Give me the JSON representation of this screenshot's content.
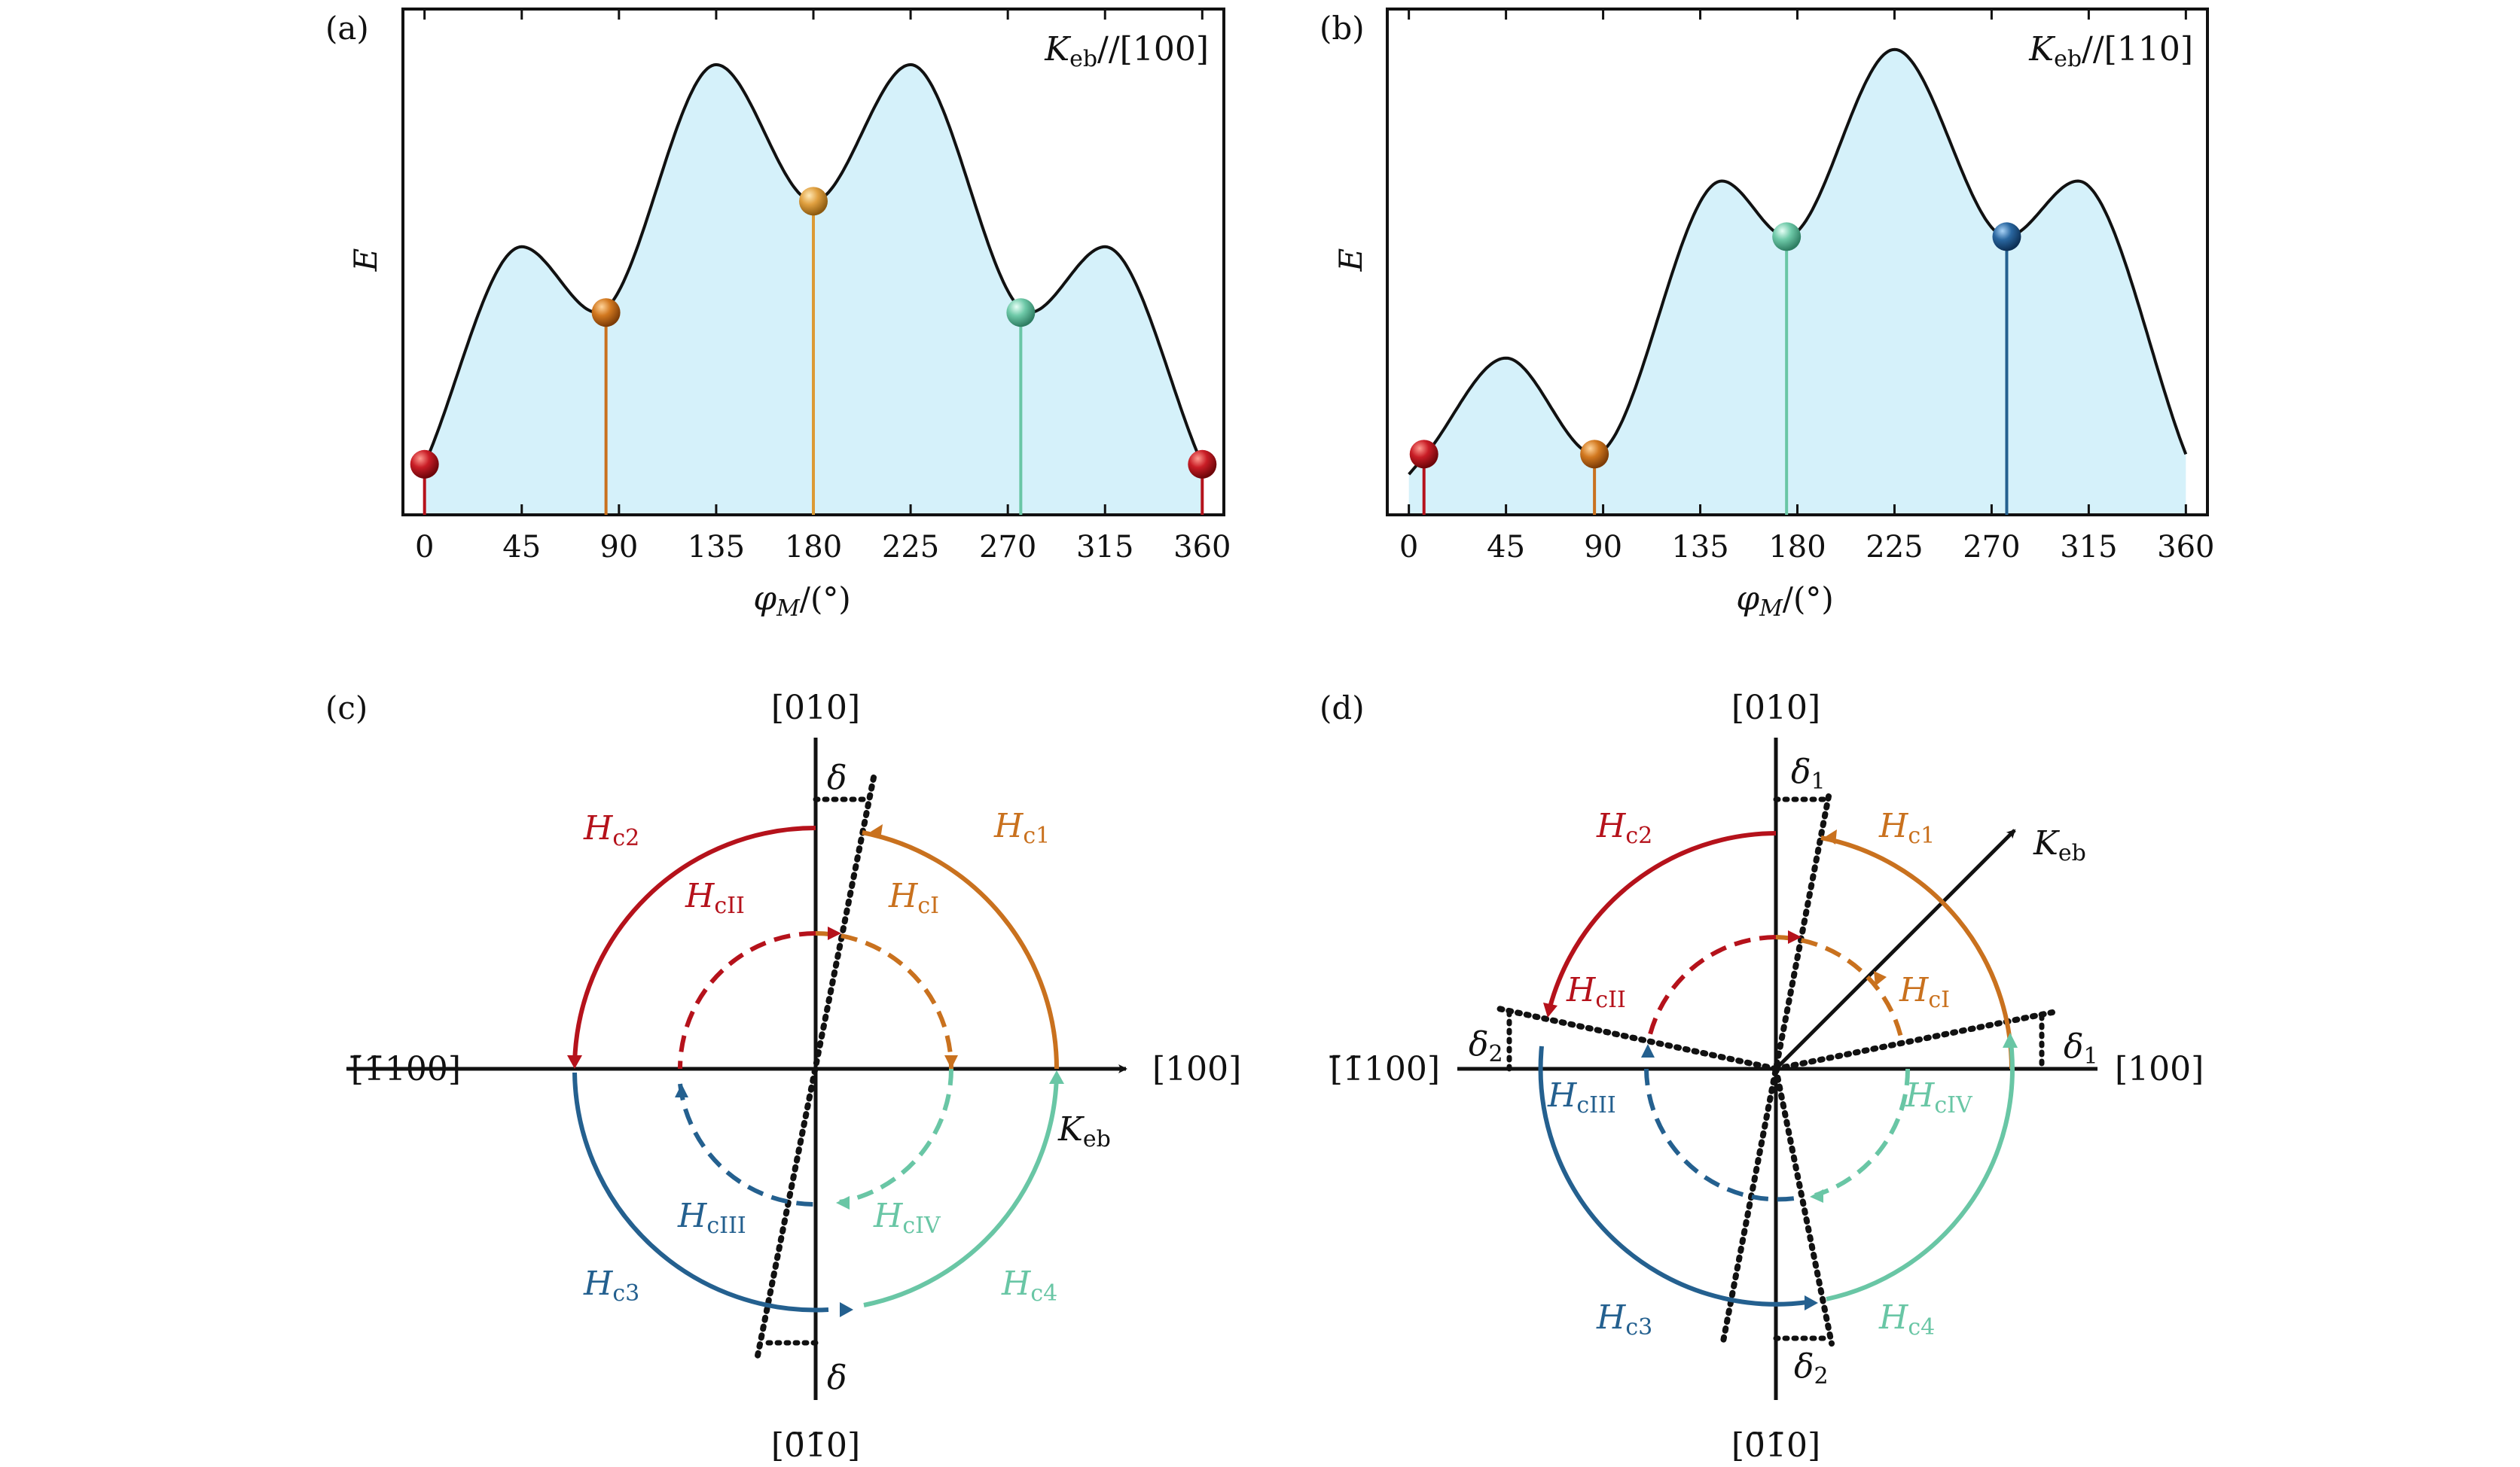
{
  "colors": {
    "fill": "#d5f1fa",
    "curve": "#111111",
    "red": "#b5121b",
    "orange": "#c9711e",
    "gold": "#dc9a35",
    "teal": "#69c6a5",
    "blue": "#24608f"
  },
  "chart_data": [
    {
      "panel_label": "(a)",
      "type": "line",
      "annotation": {
        "symbol": "K",
        "subscript": "eb",
        "direction": "//[100]"
      },
      "ylabel": "E",
      "xlabel": {
        "symbol": "φ",
        "subscript": "M",
        "unit": "/(°)"
      },
      "xlim": [
        -10,
        370
      ],
      "ylim": [
        0,
        1
      ],
      "xticks": [
        "0",
        "45",
        "90",
        "135",
        "180",
        "225",
        "270",
        "315",
        "360"
      ],
      "curve": {
        "x": [
          0,
          45,
          80,
          135,
          180,
          225,
          280,
          315,
          360
        ],
        "y": [
          0.1,
          0.53,
          0.4,
          0.89,
          0.62,
          0.89,
          0.4,
          0.53,
          0.1
        ]
      },
      "markers": [
        {
          "x": 0,
          "y": 0.1,
          "color": "red"
        },
        {
          "x": 84,
          "y": 0.4,
          "color": "orange"
        },
        {
          "x": 180,
          "y": 0.62,
          "color": "gold"
        },
        {
          "x": 276,
          "y": 0.4,
          "color": "teal"
        },
        {
          "x": 360,
          "y": 0.1,
          "color": "red"
        }
      ]
    },
    {
      "panel_label": "(b)",
      "type": "line",
      "annotation": {
        "symbol": "K",
        "subscript": "eb",
        "direction": "//[110]"
      },
      "ylabel": "E",
      "xlabel": {
        "symbol": "φ",
        "subscript": "M",
        "unit": "/(°)"
      },
      "xlim": [
        -10,
        370
      ],
      "ylim": [
        0,
        1
      ],
      "xticks": [
        "0",
        "45",
        "90",
        "135",
        "180",
        "225",
        "270",
        "315",
        "360"
      ],
      "curve": {
        "x": [
          0,
          8,
          45,
          86,
          145,
          175,
          225,
          277,
          310,
          360
        ],
        "y": [
          0.08,
          0.12,
          0.31,
          0.12,
          0.66,
          0.55,
          0.92,
          0.55,
          0.66,
          0.12
        ]
      },
      "markers": [
        {
          "x": 7,
          "y": 0.12,
          "color": "red"
        },
        {
          "x": 86,
          "y": 0.12,
          "color": "orange"
        },
        {
          "x": 175,
          "y": 0.55,
          "color": "teal"
        },
        {
          "x": 277,
          "y": 0.55,
          "color": "blue"
        }
      ]
    }
  ],
  "diagrams": {
    "c": {
      "panel_label": "(c)",
      "top": "[010]",
      "bottom": "[0̄1̄0]",
      "left": "[̄1̄100]",
      "right": "[100]",
      "keb": {
        "symbol": "K",
        "subscript": "eb"
      },
      "delta_top": "δ",
      "delta_bottom": "δ",
      "outer": [
        {
          "symbol": "H",
          "subscript": "c1",
          "color": "orange"
        },
        {
          "symbol": "H",
          "subscript": "c2",
          "color": "red"
        },
        {
          "symbol": "H",
          "subscript": "c3",
          "color": "blue"
        },
        {
          "symbol": "H",
          "subscript": "c4",
          "color": "teal"
        }
      ],
      "inner": [
        {
          "symbol": "H",
          "subscript": "cI",
          "color": "orange"
        },
        {
          "symbol": "H",
          "subscript": "cII",
          "color": "red"
        },
        {
          "symbol": "H",
          "subscript": "cIII",
          "color": "blue"
        },
        {
          "symbol": "H",
          "subscript": "cIV",
          "color": "teal"
        }
      ]
    },
    "d": {
      "panel_label": "(d)",
      "top": "[010]",
      "bottom": "[0̄1̄0]",
      "left": "[̄1̄100]",
      "right": "[100]",
      "keb": {
        "symbol": "K",
        "subscript": "eb"
      },
      "delta_1": {
        "symbol": "δ",
        "subscript": "1"
      },
      "delta_2": {
        "symbol": "δ",
        "subscript": "2"
      },
      "outer": [
        {
          "symbol": "H",
          "subscript": "c1",
          "color": "orange"
        },
        {
          "symbol": "H",
          "subscript": "c2",
          "color": "red"
        },
        {
          "symbol": "H",
          "subscript": "c3",
          "color": "blue"
        },
        {
          "symbol": "H",
          "subscript": "c4",
          "color": "teal"
        }
      ],
      "inner": [
        {
          "symbol": "H",
          "subscript": "cI",
          "color": "orange"
        },
        {
          "symbol": "H",
          "subscript": "cII",
          "color": "red"
        },
        {
          "symbol": "H",
          "subscript": "cIII",
          "color": "blue"
        },
        {
          "symbol": "H",
          "subscript": "cIV",
          "color": "teal"
        }
      ]
    }
  }
}
